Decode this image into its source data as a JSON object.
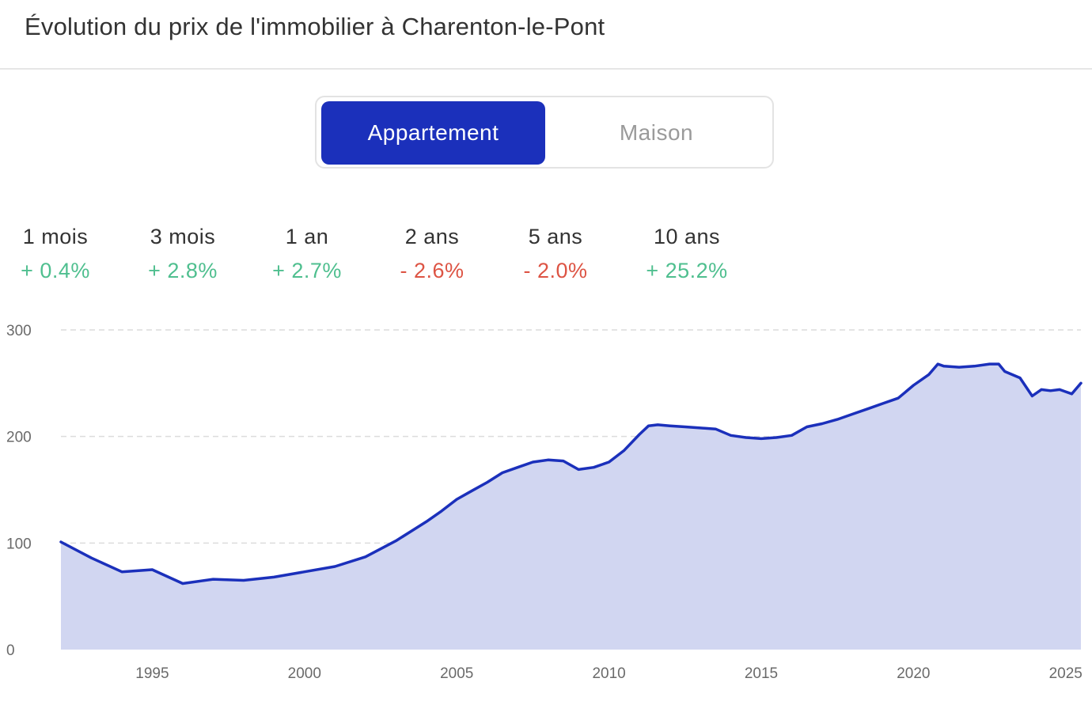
{
  "title": "Évolution du prix de l'immobilier à Charenton-le-Pont",
  "toggle": {
    "options": [
      "Appartement",
      "Maison"
    ],
    "selected": "Appartement"
  },
  "stats": [
    {
      "label": "1 mois",
      "value": "+ 0.4%",
      "trend": "up"
    },
    {
      "label": "3 mois",
      "value": "+ 2.8%",
      "trend": "up"
    },
    {
      "label": "1 an",
      "value": "+ 2.7%",
      "trend": "up"
    },
    {
      "label": "2 ans",
      "value": "- 2.6%",
      "trend": "down"
    },
    {
      "label": "5 ans",
      "value": "- 2.0%",
      "trend": "down"
    },
    {
      "label": "10 ans",
      "value": "+ 25.2%",
      "trend": "up"
    }
  ],
  "colors": {
    "accent": "#1b30bb",
    "area_fill": "#d1d6f1",
    "positive": "#4fbf8f",
    "negative": "#dd5444"
  },
  "chart_data": {
    "type": "area",
    "title": "",
    "xlabel": "",
    "ylabel": "",
    "xlim": [
      1992,
      2025.5
    ],
    "ylim": [
      0,
      300
    ],
    "yticks": [
      0,
      100,
      200,
      300
    ],
    "xticks": [
      1995,
      2000,
      2005,
      2010,
      2015,
      2020,
      2025
    ],
    "grid": "horizontal dashed",
    "series": [
      {
        "x": [
          1992,
          1993,
          1994,
          1995,
          1996,
          1997,
          1998,
          1999,
          2000,
          2001,
          2002,
          2003,
          2003.5,
          2004,
          2004.5,
          2005,
          2005.5,
          2006,
          2006.5,
          2007,
          2007.5,
          2008,
          2008.5,
          2009,
          2009.5,
          2010,
          2010.5,
          2011,
          2011.3,
          2011.6,
          2012,
          2012.5,
          2013,
          2013.5,
          2014,
          2014.5,
          2015,
          2015.5,
          2016,
          2016.5,
          2017,
          2017.5,
          2018,
          2018.5,
          2019,
          2019.5,
          2020,
          2020.5,
          2020.8,
          2021,
          2021.5,
          2022,
          2022.5,
          2022.8,
          2023,
          2023.5,
          2023.9,
          2024.2,
          2024.5,
          2024.8,
          2025,
          2025.2,
          2025.5
        ],
        "values": [
          101,
          86,
          73,
          75,
          62,
          66,
          65,
          68,
          73,
          78,
          87,
          102,
          111,
          120,
          130,
          141,
          149,
          157,
          166,
          171,
          176,
          178,
          177,
          169,
          171,
          176,
          187,
          202,
          210,
          211,
          210,
          209,
          208,
          207,
          201,
          199,
          198,
          199,
          201,
          209,
          212,
          216,
          221,
          226,
          231,
          236,
          248,
          258,
          268,
          266,
          265,
          266,
          268,
          268,
          261,
          255,
          238,
          244,
          243,
          244,
          242,
          240,
          250
        ]
      }
    ]
  }
}
